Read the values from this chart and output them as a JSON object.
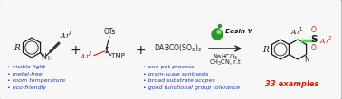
{
  "bg_color": "#f7f7f7",
  "border_color": "#aaaaaa",
  "bullet_left": [
    "• visible-light",
    "• metal-free",
    "• room temperature",
    "• eco-friendly"
  ],
  "bullet_right": [
    "• one-pot process",
    "• gram-scale synthesis",
    "• broad substrate scopes",
    "• good functional group tolerance"
  ],
  "bullet_color": "#1a3aaa",
  "red": "#cc2000",
  "black": "#1a1a1a",
  "green_dark": "#2a9a2a",
  "green_light": "#88dd88",
  "green_bond": "#44dd44",
  "arrow_color": "#333333",
  "product_label_color": "#cc2000",
  "fs_main": 6.5,
  "fs_small": 5.5,
  "fs_tiny": 4.8,
  "fs_bullet": 4.5
}
